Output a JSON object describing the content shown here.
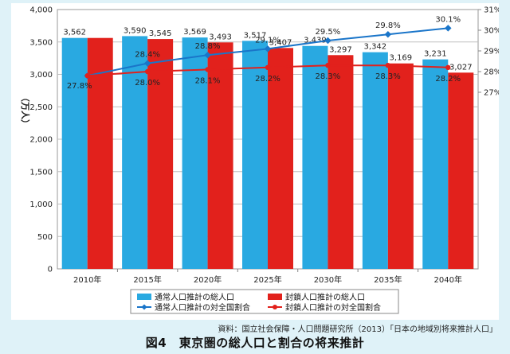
{
  "chart_data": {
    "type": "bar",
    "categories": [
      "2010年",
      "2015年",
      "2020年",
      "2025年",
      "2030年",
      "2035年",
      "2040年"
    ],
    "ylabel": "（万人）",
    "ylim": [
      0,
      4000
    ],
    "y_ticks": [
      "0",
      "500",
      "1,000",
      "1,500",
      "2,000",
      "2,500",
      "3,000",
      "3,500",
      "4,000"
    ],
    "y2lim": [
      27,
      31
    ],
    "y2_ticks": [
      "27%",
      "28%",
      "29%",
      "30%",
      "31%"
    ],
    "grid": true,
    "legend_position": "bottom",
    "series": [
      {
        "name": "通常人口推計の総人口",
        "kind": "bar",
        "color": "#29a9e1",
        "values": [
          3562,
          3590,
          3569,
          3517,
          3439,
          3342,
          3231
        ],
        "labels": [
          "3,562",
          "3,590",
          "3,569",
          "3,517",
          "3,439",
          "3,342",
          "3,231"
        ]
      },
      {
        "name": "封鎖人口推計の総人口",
        "kind": "bar",
        "color": "#e2211c",
        "values": [
          3562,
          3545,
          3493,
          3407,
          3297,
          3169,
          3027
        ],
        "labels": [
          "",
          "3,545",
          "3,493",
          "3,407",
          "3,297",
          "3,169",
          "3,027"
        ]
      },
      {
        "name": "通常人口推計の対全国割合",
        "kind": "line",
        "color": "#1a75c9",
        "values": [
          27.8,
          28.4,
          28.8,
          29.1,
          29.5,
          29.8,
          30.1
        ],
        "labels": [
          "27.8%",
          "28.4%",
          "28.8%",
          "29.1%",
          "29.5%",
          "29.8%",
          "30.1%"
        ]
      },
      {
        "name": "封鎖人口推計の対全国割合",
        "kind": "line",
        "color": "#e2211c",
        "values": [
          27.8,
          28.0,
          28.1,
          28.2,
          28.3,
          28.3,
          28.2
        ],
        "labels": [
          "",
          "28.0%",
          "28.1%",
          "28.2%",
          "28.3%",
          "28.3%",
          "28.2%"
        ]
      }
    ]
  },
  "source": "資料：国立社会保障・人口問題研究所（2013）「日本の地域別将来推計人口」",
  "caption": "図4　東京圏の総人口と割合の将来推計"
}
